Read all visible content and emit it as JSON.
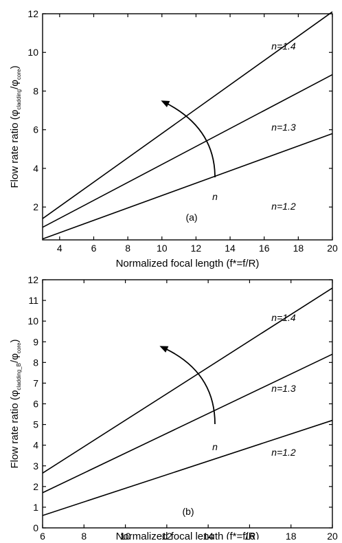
{
  "chart_data": [
    {
      "type": "line",
      "panel_label": "(a)",
      "xlabel": "Normalized focal length (f*=f/R)",
      "ylabel": {
        "main": "Flow rate ratio  (",
        "sym1": "φ",
        "sub1": "cladding",
        "sep": "/",
        "sym2": "φ",
        "sub2": "core",
        "end": ")"
      },
      "xlim": [
        3,
        20
      ],
      "ylim": [
        0.3,
        12
      ],
      "xticks": [
        4,
        6,
        8,
        10,
        12,
        14,
        16,
        18,
        20
      ],
      "yticks": [
        2,
        4,
        6,
        8,
        10,
        12
      ],
      "series": [
        {
          "name": "n=1.4",
          "x": [
            3,
            20
          ],
          "values": [
            1.4,
            12.1
          ]
        },
        {
          "name": "n=1.3",
          "x": [
            3,
            20
          ],
          "values": [
            0.95,
            8.85
          ]
        },
        {
          "name": "n=1.2",
          "x": [
            3,
            20
          ],
          "values": [
            0.35,
            5.8
          ]
        }
      ],
      "arrow_label": "n",
      "grid": false,
      "legend": "inline labels"
    },
    {
      "type": "line",
      "panel_label": "(b)",
      "xlabel": "Normalized focal length (f*=f/R)",
      "ylabel": {
        "main": "Flow rate ratio  (",
        "sym1": "φ",
        "sub1": "cladding_B",
        "sep": "/",
        "sym2": "φ",
        "sub2": "core",
        "end": ")"
      },
      "xlim": [
        6,
        20
      ],
      "ylim": [
        0,
        12
      ],
      "xticks": [
        6,
        8,
        10,
        12,
        14,
        16,
        18,
        20
      ],
      "yticks": [
        0,
        1,
        2,
        3,
        4,
        5,
        6,
        7,
        8,
        9,
        10,
        11,
        12
      ],
      "series": [
        {
          "name": "n=1.4",
          "x": [
            6,
            20
          ],
          "values": [
            2.65,
            11.6
          ]
        },
        {
          "name": "n=1.3",
          "x": [
            6,
            20
          ],
          "values": [
            1.7,
            8.4
          ]
        },
        {
          "name": "n=1.2",
          "x": [
            6,
            20
          ],
          "values": [
            0.6,
            5.2
          ]
        }
      ],
      "arrow_label": "n",
      "grid": false,
      "legend": "inline labels"
    }
  ]
}
